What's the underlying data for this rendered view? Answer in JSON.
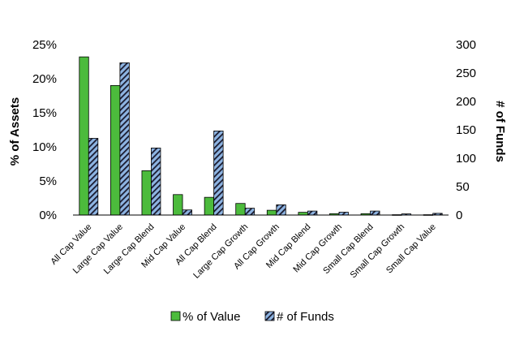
{
  "chart_data": {
    "type": "bar",
    "categories": [
      "All Cap Value",
      "Large Cap Value",
      "Large Cap Blend",
      "Mid Cap Value",
      "All Cap Blend",
      "Large Cap Growth",
      "All Cap Growth",
      "Mid Cap Blend",
      "Mid Cap Growth",
      "Small Cap Blend",
      "Small Cap Growth",
      "Small Cap Value"
    ],
    "series": [
      {
        "name": "% of Value",
        "axis": "left",
        "color": "#4cbb3c",
        "values": [
          23.2,
          19.0,
          6.5,
          3.0,
          2.6,
          1.7,
          0.7,
          0.4,
          0.2,
          0.2,
          0.05,
          0.05
        ]
      },
      {
        "name": "# of Funds",
        "axis": "right",
        "color": "#8db4e2",
        "pattern": "diagonal-hatch",
        "values": [
          135,
          268,
          118,
          9,
          148,
          12,
          18,
          7,
          5,
          7,
          2,
          3
        ]
      }
    ],
    "ylabel": "% of Assets",
    "y2label": "# of Funds",
    "ylim": [
      0,
      25
    ],
    "y2lim": [
      0,
      300
    ],
    "yticks": [
      "0%",
      "5%",
      "10%",
      "15%",
      "20%",
      "25%"
    ],
    "y2ticks": [
      "0",
      "50",
      "100",
      "150",
      "200",
      "250",
      "300"
    ],
    "legend_position": "bottom",
    "grid": false
  }
}
